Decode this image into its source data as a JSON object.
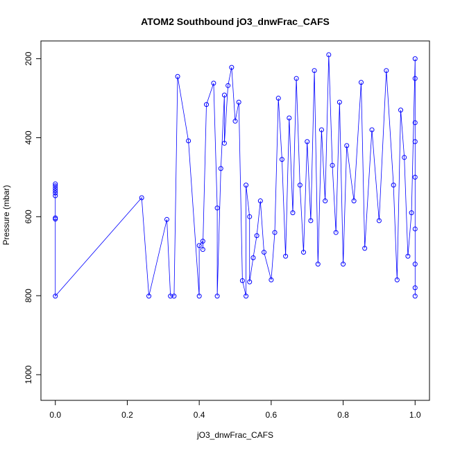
{
  "chart_data": {
    "type": "scatter",
    "title": "ATOM2 Southbound jO3_dnwFrac_CAFS",
    "xlabel": "jO3_dnwFrac_CAFS",
    "ylabel": "Pressure (mbar)",
    "xlim": [
      -0.04,
      1.04
    ],
    "ylim": [
      1065,
      155
    ],
    "y_reversed": true,
    "x_ticks": [
      "0.0",
      "0.2",
      "0.4",
      "0.6",
      "0.8",
      "1.0"
    ],
    "x_tick_values": [
      0.0,
      0.2,
      0.4,
      0.6,
      0.8,
      1.0
    ],
    "y_ticks": [
      "200",
      "400",
      "600",
      "800",
      "1000"
    ],
    "y_tick_values": [
      200,
      400,
      600,
      800,
      1000
    ],
    "marker": "open-circle",
    "line": true,
    "color": "#0000ff",
    "grid": false,
    "series": [
      {
        "points": [
          [
            0.0,
            517
          ],
          [
            0.0,
            522
          ],
          [
            0.0,
            528
          ],
          [
            0.0,
            534
          ],
          [
            0.0,
            540
          ],
          [
            0.0,
            547
          ],
          [
            0.0,
            603
          ],
          [
            0.0,
            606
          ],
          [
            0.0,
            801
          ],
          [
            0.24,
            552
          ],
          [
            0.26,
            801
          ],
          [
            0.31,
            607
          ],
          [
            0.32,
            801
          ],
          [
            0.33,
            801
          ],
          [
            0.34,
            245
          ],
          [
            0.37,
            408
          ],
          [
            0.4,
            801
          ],
          [
            0.4,
            673
          ],
          [
            0.41,
            662
          ],
          [
            0.41,
            683
          ],
          [
            0.42,
            316
          ],
          [
            0.44,
            262
          ],
          [
            0.45,
            578
          ],
          [
            0.45,
            801
          ],
          [
            0.46,
            478
          ],
          [
            0.47,
            292
          ],
          [
            0.47,
            414
          ],
          [
            0.48,
            268
          ],
          [
            0.49,
            222
          ],
          [
            0.5,
            358
          ],
          [
            0.51,
            310
          ],
          [
            0.52,
            762
          ],
          [
            0.53,
            801
          ],
          [
            0.53,
            520
          ],
          [
            0.54,
            600
          ],
          [
            0.54,
            765
          ],
          [
            0.55,
            704
          ],
          [
            0.56,
            648
          ],
          [
            0.57,
            560
          ],
          [
            0.58,
            690
          ],
          [
            0.6,
            760
          ],
          [
            0.61,
            640
          ],
          [
            0.62,
            300
          ],
          [
            0.63,
            455
          ],
          [
            0.64,
            700
          ],
          [
            0.65,
            350
          ],
          [
            0.66,
            590
          ],
          [
            0.67,
            250
          ],
          [
            0.68,
            520
          ],
          [
            0.69,
            690
          ],
          [
            0.7,
            410
          ],
          [
            0.71,
            610
          ],
          [
            0.72,
            230
          ],
          [
            0.73,
            720
          ],
          [
            0.74,
            380
          ],
          [
            0.75,
            560
          ],
          [
            0.76,
            190
          ],
          [
            0.77,
            470
          ],
          [
            0.78,
            640
          ],
          [
            0.79,
            310
          ],
          [
            0.8,
            720
          ],
          [
            0.81,
            420
          ],
          [
            0.83,
            560
          ],
          [
            0.85,
            260
          ],
          [
            0.86,
            680
          ],
          [
            0.88,
            380
          ],
          [
            0.9,
            610
          ],
          [
            0.92,
            230
          ],
          [
            0.94,
            520
          ],
          [
            0.95,
            760
          ],
          [
            0.96,
            330
          ],
          [
            0.97,
            450
          ],
          [
            0.98,
            700
          ],
          [
            0.99,
            590
          ],
          [
            1.0,
            200
          ],
          [
            1.0,
            250
          ],
          [
            1.0,
            362
          ],
          [
            1.0,
            410
          ],
          [
            1.0,
            500
          ],
          [
            1.0,
            631
          ],
          [
            1.0,
            720
          ],
          [
            1.0,
            780
          ],
          [
            1.0,
            801
          ]
        ]
      }
    ]
  }
}
